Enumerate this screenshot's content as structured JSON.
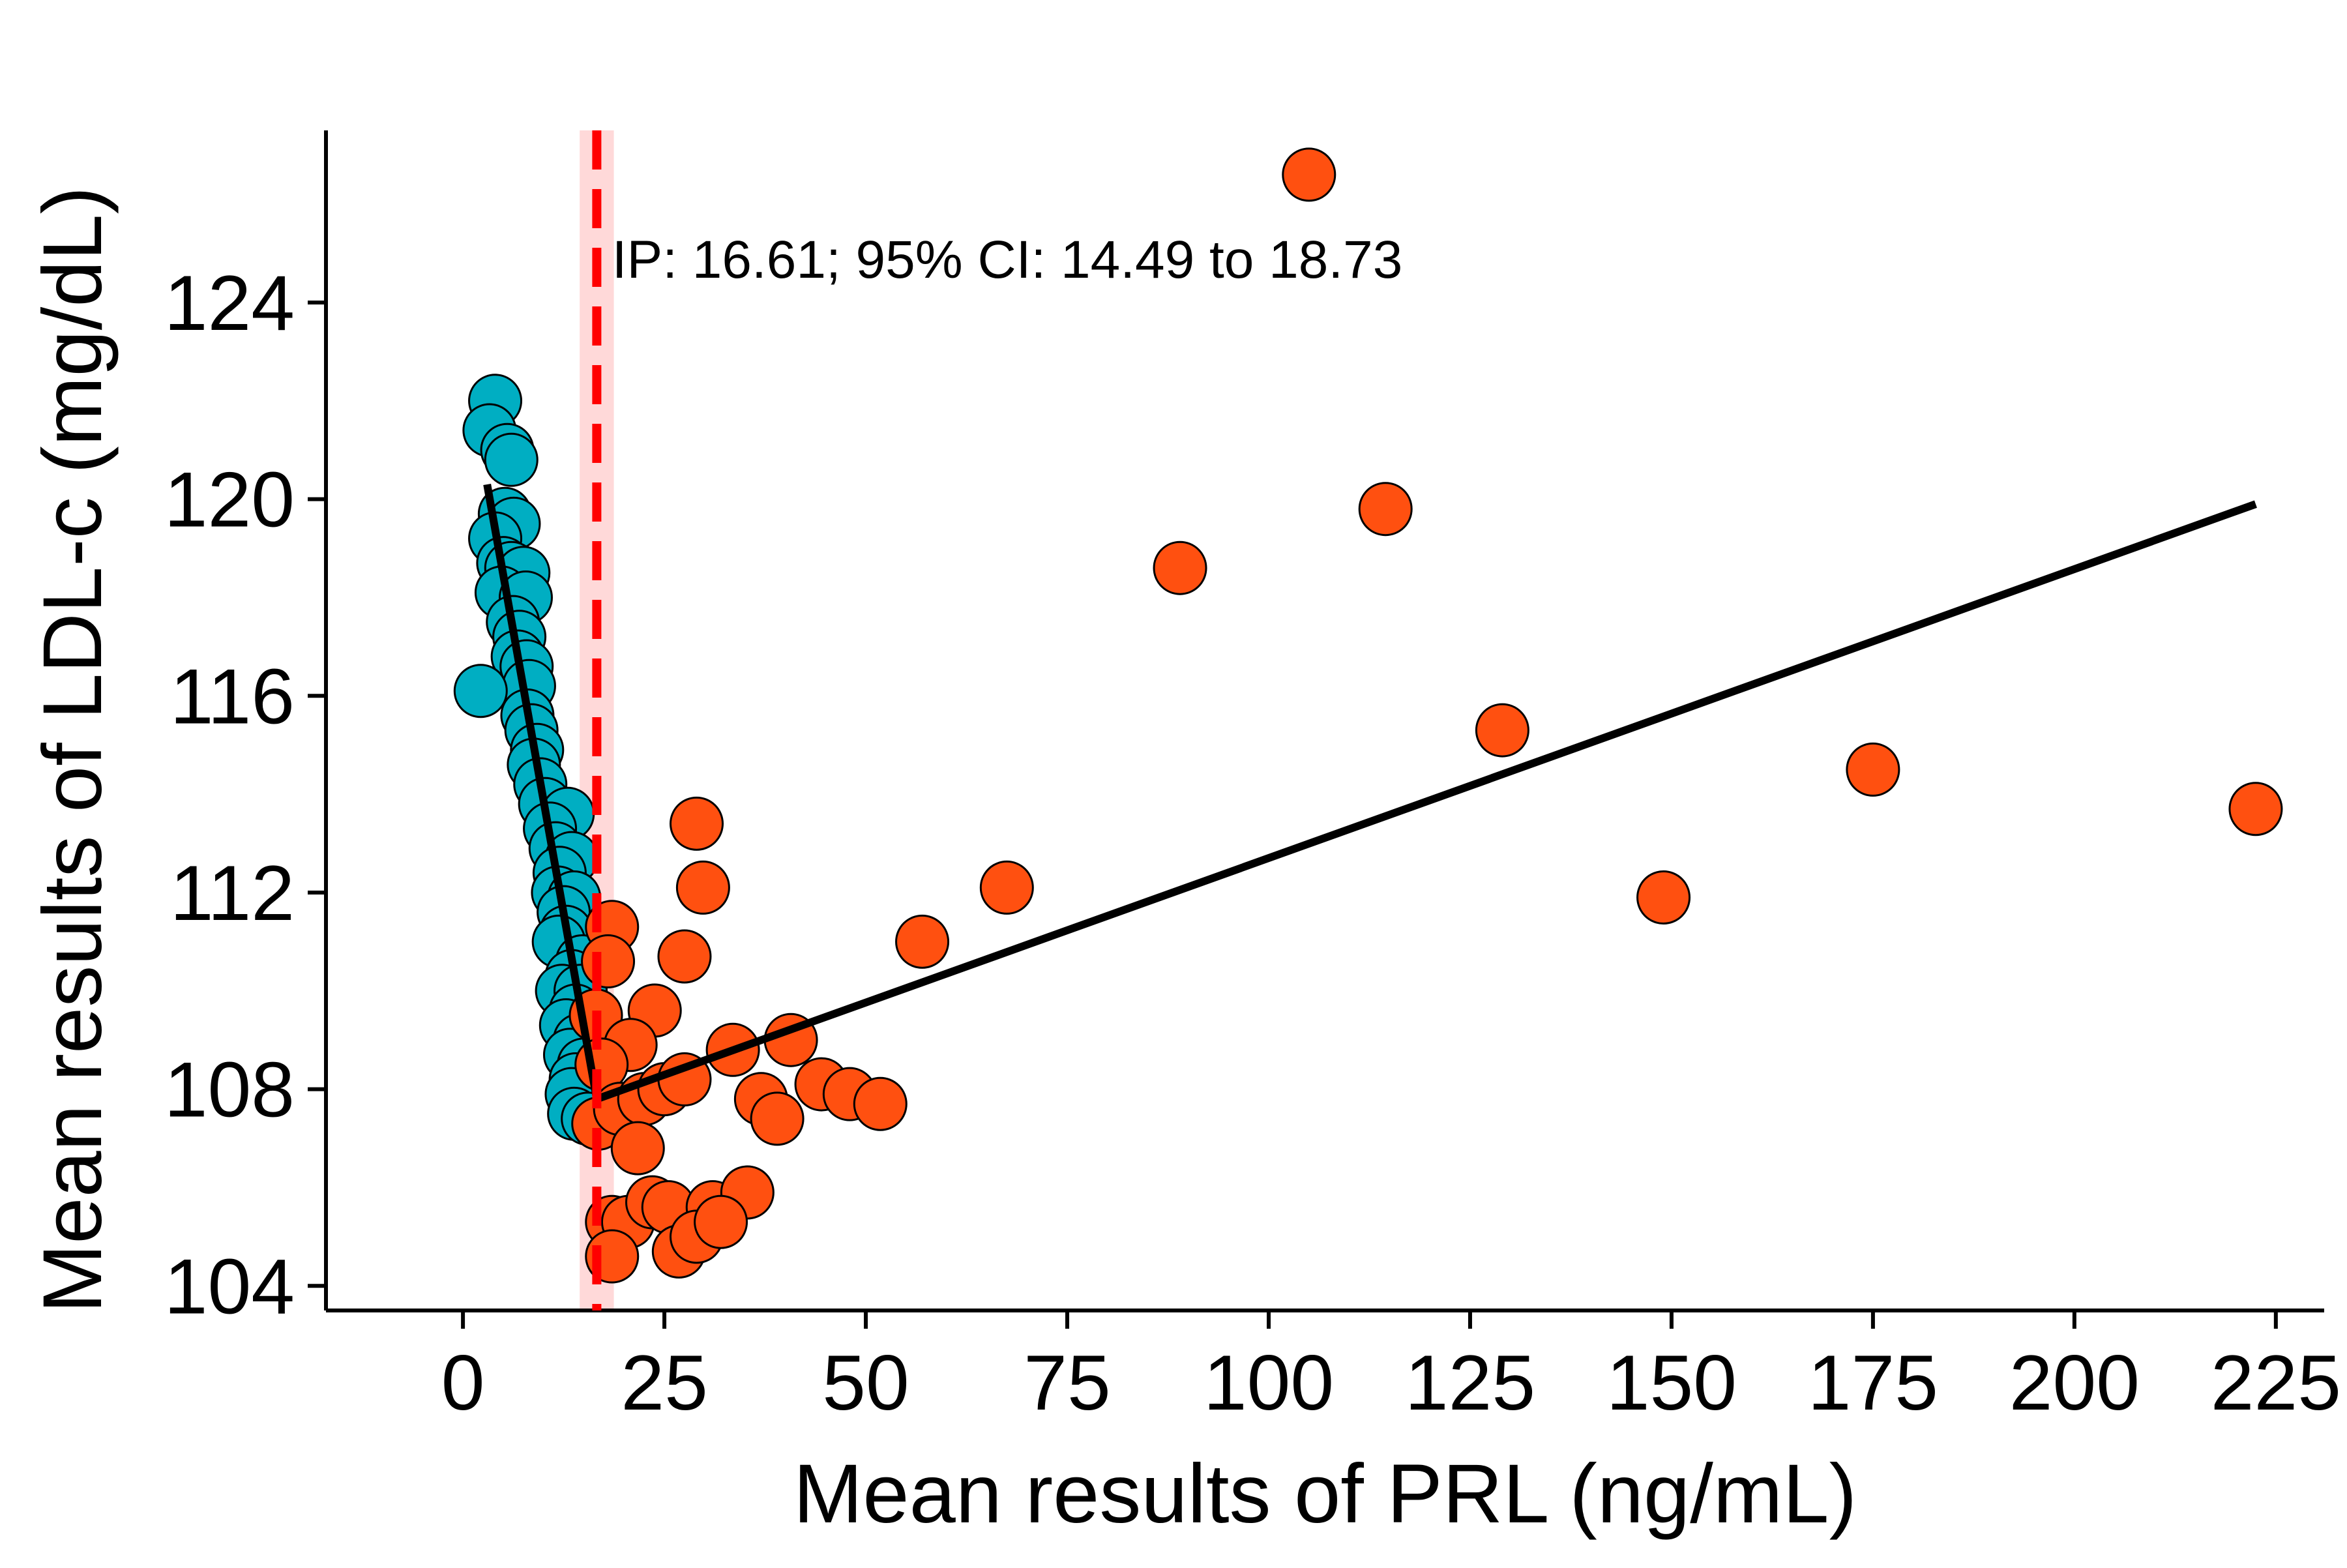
{
  "chart_data": {
    "type": "scatter",
    "xlabel": "Mean results of PRL (ng/mL)",
    "ylabel": "Mean results of LDL-c (mg/dL)",
    "xlim": [
      -17,
      231
    ],
    "ylim": [
      103.5,
      127.5
    ],
    "x_ticks": [
      0,
      25,
      50,
      75,
      100,
      125,
      150,
      175,
      200,
      225
    ],
    "y_ticks": [
      104,
      108,
      112,
      116,
      120,
      124
    ],
    "grid": false,
    "legend": "none",
    "annotation": {
      "text": "IP: 16.61; 95% CI: 14.49 to 18.73",
      "x": 18.5,
      "y": 124.9
    },
    "inflection_point": {
      "value": 16.61,
      "ci_low": 14.49,
      "ci_high": 18.73,
      "line_color": "#FF0000",
      "band_color": "#FFD2D2"
    },
    "segments": [
      {
        "x": [
          3.0,
          16.61
        ],
        "y": [
          120.3,
          107.8
        ]
      },
      {
        "x": [
          16.61,
          222.5
        ],
        "y": [
          107.8,
          119.9
        ]
      }
    ],
    "series": [
      {
        "color": "#00AEC2",
        "points": [
          [
            4.0,
            122.0
          ],
          [
            3.3,
            121.4
          ],
          [
            5.5,
            121.0
          ],
          [
            6.0,
            120.8
          ],
          [
            5.2,
            119.7
          ],
          [
            6.3,
            119.5
          ],
          [
            4.0,
            119.2
          ],
          [
            5.0,
            118.7
          ],
          [
            6.0,
            118.6
          ],
          [
            7.5,
            118.5
          ],
          [
            4.8,
            118.1
          ],
          [
            7.8,
            118.0
          ],
          [
            6.2,
            117.5
          ],
          [
            7.0,
            117.2
          ],
          [
            6.8,
            116.8
          ],
          [
            7.9,
            116.6
          ],
          [
            8.2,
            116.2
          ],
          [
            2.2,
            116.1
          ],
          [
            8.0,
            115.6
          ],
          [
            8.5,
            115.3
          ],
          [
            9.2,
            114.9
          ],
          [
            8.8,
            114.6
          ],
          [
            9.6,
            114.2
          ],
          [
            10.2,
            113.8
          ],
          [
            13.0,
            113.6
          ],
          [
            10.8,
            113.3
          ],
          [
            11.5,
            112.9
          ],
          [
            13.5,
            112.7
          ],
          [
            12.0,
            112.4
          ],
          [
            11.8,
            112.0
          ],
          [
            13.8,
            111.9
          ],
          [
            12.5,
            111.6
          ],
          [
            12.8,
            111.2
          ],
          [
            11.9,
            111.0
          ],
          [
            14.8,
            110.6
          ],
          [
            13.5,
            110.3
          ],
          [
            12.3,
            110.0
          ],
          [
            14.6,
            110.0
          ],
          [
            14.0,
            109.6
          ],
          [
            12.8,
            109.3
          ],
          [
            14.5,
            109.0
          ],
          [
            13.3,
            108.7
          ],
          [
            15.0,
            108.5
          ],
          [
            14.0,
            108.2
          ],
          [
            13.5,
            107.9
          ],
          [
            13.8,
            107.5
          ],
          [
            15.5,
            107.4
          ]
        ]
      },
      {
        "color": "#FF5010",
        "points": [
          [
            105.0,
            126.6
          ],
          [
            114.5,
            119.8
          ],
          [
            89.0,
            118.6
          ],
          [
            129.0,
            115.3
          ],
          [
            175.0,
            114.5
          ],
          [
            222.5,
            113.7
          ],
          [
            149.0,
            111.9
          ],
          [
            29.0,
            113.4
          ],
          [
            29.8,
            112.1
          ],
          [
            67.5,
            112.1
          ],
          [
            57.0,
            111.0
          ],
          [
            18.5,
            111.3
          ],
          [
            27.5,
            110.7
          ],
          [
            18.0,
            110.6
          ],
          [
            23.8,
            109.6
          ],
          [
            16.5,
            109.5
          ],
          [
            33.5,
            108.8
          ],
          [
            40.7,
            109.0
          ],
          [
            20.8,
            108.9
          ],
          [
            17.2,
            108.5
          ],
          [
            16.8,
            107.3
          ],
          [
            19.5,
            107.6
          ],
          [
            22.5,
            107.8
          ],
          [
            25.0,
            108.0
          ],
          [
            27.5,
            108.2
          ],
          [
            37.0,
            107.8
          ],
          [
            39.0,
            107.4
          ],
          [
            44.5,
            108.1
          ],
          [
            48.0,
            107.9
          ],
          [
            51.8,
            107.7
          ],
          [
            21.7,
            106.8
          ],
          [
            18.5,
            105.3
          ],
          [
            20.5,
            105.3
          ],
          [
            23.5,
            105.7
          ],
          [
            25.5,
            105.6
          ],
          [
            31.0,
            105.6
          ],
          [
            35.3,
            105.9
          ],
          [
            18.5,
            104.6
          ],
          [
            26.8,
            104.7
          ],
          [
            29.0,
            105.0
          ],
          [
            32.0,
            105.3
          ]
        ]
      }
    ]
  }
}
